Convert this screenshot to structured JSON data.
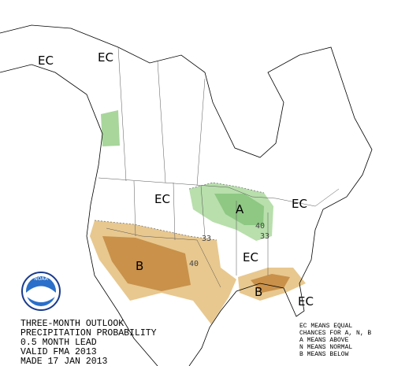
{
  "map": {
    "region_labels": [
      "EC",
      "EC",
      "EC",
      "EC",
      "EC",
      "EC",
      "A",
      "B",
      "B"
    ],
    "contour_labels": [
      "33",
      "40",
      "40",
      "33"
    ]
  },
  "logo": {
    "text": "NOAA"
  },
  "caption": {
    "lines": [
      "THREE-MONTH OUTLOOK",
      "PRECIPITATION PROBABILITY",
      "0.5 MONTH LEAD",
      "VALID FMA 2013",
      "MADE 17 JAN 2013"
    ]
  },
  "legend": {
    "lines": [
      "EC MEANS EQUAL",
      "CHANCES FOR A, N, B",
      "A MEANS ABOVE",
      "N MEANS NORMAL",
      "B MEANS BELOW"
    ]
  }
}
